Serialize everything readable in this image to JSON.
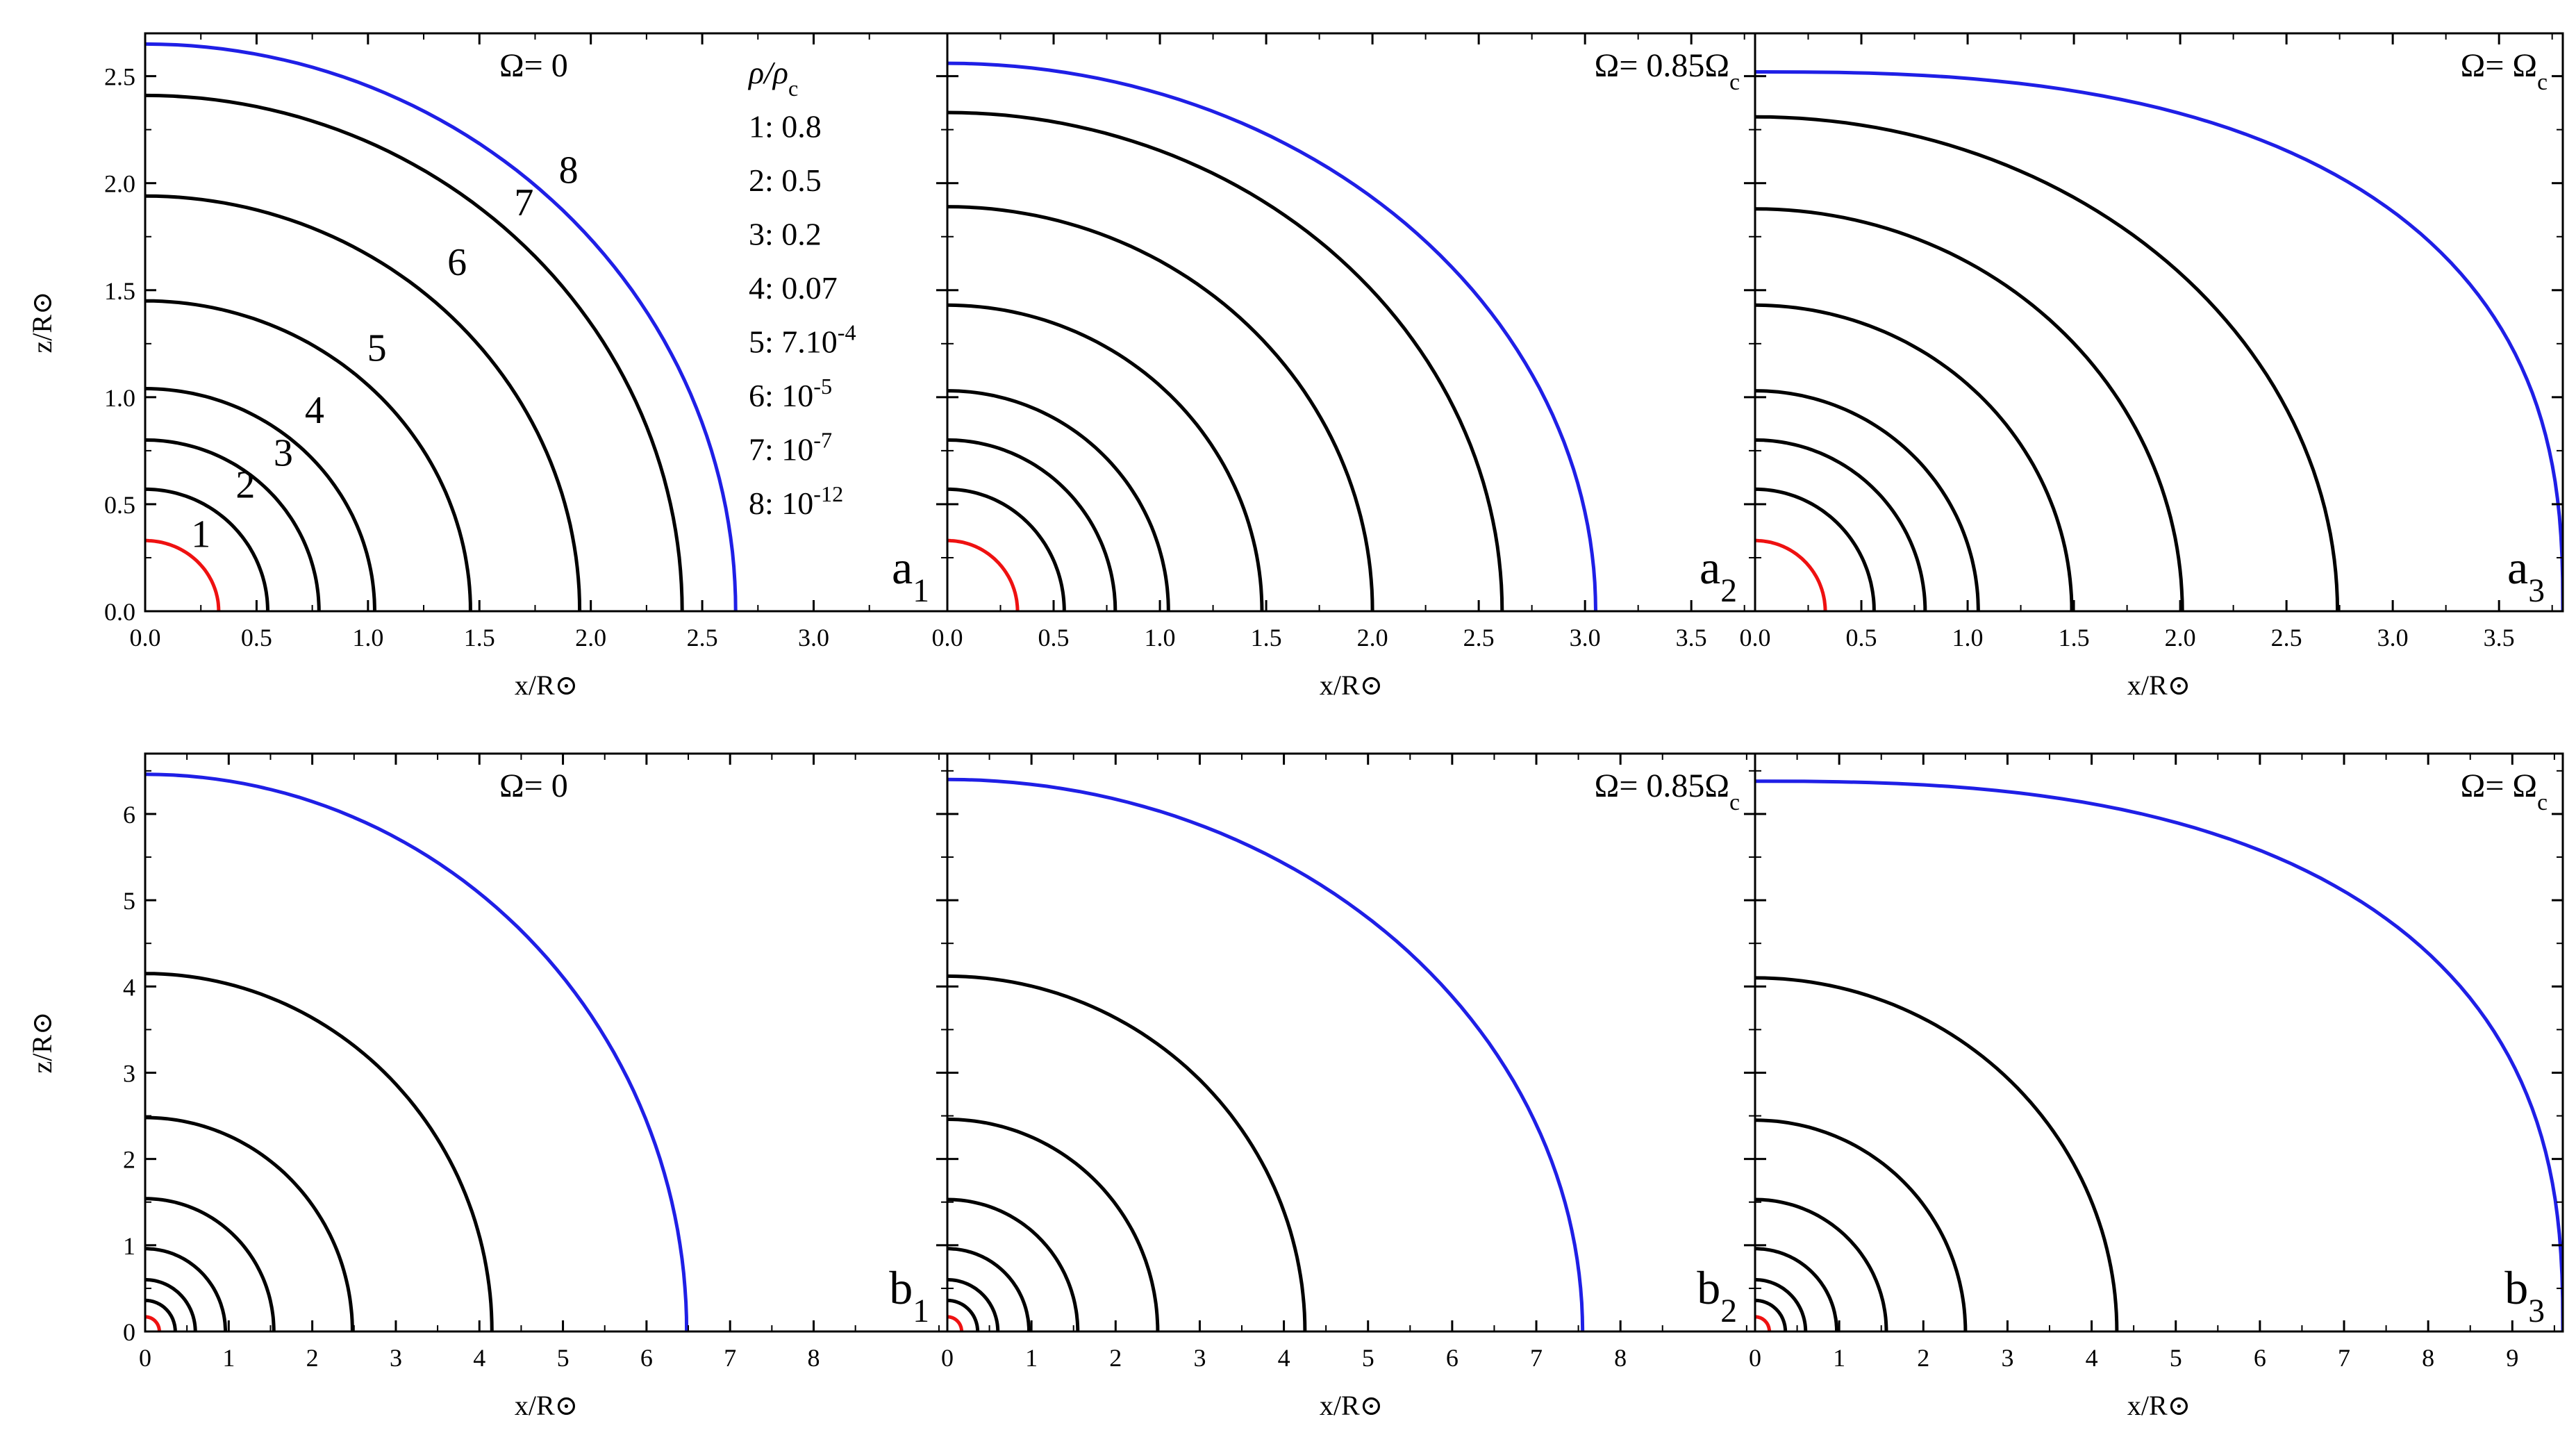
{
  "chart_data": {
    "type": "line",
    "description_of_axes": {
      "xlabel": "x/R⊙",
      "ylabel": "z/R⊙"
    },
    "legend": {
      "title": "ρ/ρ",
      "title_sub": "c",
      "entries": [
        {
          "id": "1",
          "base": "0.8",
          "sup": ""
        },
        {
          "id": "2",
          "base": "0.5",
          "sup": ""
        },
        {
          "id": "3",
          "base": "0.2",
          "sup": ""
        },
        {
          "id": "4",
          "base": "0.07",
          "sup": ""
        },
        {
          "id": "5",
          "base": "7.10",
          "sup": "-4"
        },
        {
          "id": "6",
          "base": "10",
          "sup": "-5"
        },
        {
          "id": "7",
          "base": "10",
          "sup": "-7"
        },
        {
          "id": "8",
          "base": "10",
          "sup": "-12"
        }
      ]
    },
    "contour_labels": [
      {
        "text": "1",
        "x": 0.25,
        "z": 0.3
      },
      {
        "text": "2",
        "x": 0.45,
        "z": 0.53
      },
      {
        "text": "3",
        "x": 0.62,
        "z": 0.68
      },
      {
        "text": "4",
        "x": 0.76,
        "z": 0.88
      },
      {
        "text": "5",
        "x": 1.04,
        "z": 1.17
      },
      {
        "text": "6",
        "x": 1.4,
        "z": 1.57
      },
      {
        "text": "7",
        "x": 1.7,
        "z": 1.85
      },
      {
        "text": "8",
        "x": 1.9,
        "z": 2.0
      }
    ],
    "panels": [
      {
        "id": "a1",
        "label": "a",
        "label_sub": "1",
        "omega": "Ω= 0",
        "omega_sub": "",
        "xlim": [
          0,
          3.6
        ],
        "ylim": [
          0,
          2.7
        ],
        "xticks": [
          "0.0",
          "0.5",
          "1.0",
          "1.5",
          "2.0",
          "2.5",
          "3.0"
        ],
        "yticks": [
          "0.0",
          "0.5",
          "1.0",
          "1.5",
          "2.0",
          "2.5"
        ],
        "contours": [
          {
            "name": "1",
            "color": "red",
            "eq": 0.33,
            "pole": 0.33
          },
          {
            "name": "2",
            "color": "black",
            "eq": 0.55,
            "pole": 0.57
          },
          {
            "name": "3",
            "color": "black",
            "eq": 0.78,
            "pole": 0.8
          },
          {
            "name": "4",
            "color": "black",
            "eq": 1.03,
            "pole": 1.04
          },
          {
            "name": "5",
            "color": "black",
            "eq": 1.46,
            "pole": 1.45
          },
          {
            "name": "6",
            "color": "black",
            "eq": 1.95,
            "pole": 1.94
          },
          {
            "name": "7",
            "color": "black",
            "eq": 2.41,
            "pole": 2.41
          },
          {
            "name": "8",
            "color": "blue",
            "eq": 2.65,
            "pole": 2.65
          }
        ]
      },
      {
        "id": "a2",
        "label": "a",
        "label_sub": "2",
        "omega": "Ω= 0.85Ω",
        "omega_sub": "c",
        "xlim": [
          0,
          3.8
        ],
        "ylim": [
          0,
          2.7
        ],
        "xticks": [
          "0.0",
          "0.5",
          "1.0",
          "1.5",
          "2.0",
          "2.5",
          "3.0",
          "3.5"
        ],
        "yticks": [],
        "contours": [
          {
            "name": "1",
            "color": "red",
            "eq": 0.33,
            "pole": 0.33
          },
          {
            "name": "2",
            "color": "black",
            "eq": 0.55,
            "pole": 0.57
          },
          {
            "name": "3",
            "color": "black",
            "eq": 0.79,
            "pole": 0.8
          },
          {
            "name": "4",
            "color": "black",
            "eq": 1.04,
            "pole": 1.03
          },
          {
            "name": "5",
            "color": "black",
            "eq": 1.48,
            "pole": 1.43
          },
          {
            "name": "6",
            "color": "black",
            "eq": 2.0,
            "pole": 1.89
          },
          {
            "name": "7",
            "color": "black",
            "eq": 2.61,
            "pole": 2.33
          },
          {
            "name": "8",
            "color": "blue",
            "eq": 3.05,
            "pole": 2.56
          }
        ]
      },
      {
        "id": "a3",
        "label": "a",
        "label_sub": "3",
        "omega": "Ω= Ω",
        "omega_sub": "c",
        "xlim": [
          0,
          3.8
        ],
        "ylim": [
          0,
          2.7
        ],
        "xticks": [
          "0.0",
          "0.5",
          "1.0",
          "1.5",
          "2.0",
          "2.5",
          "3.0",
          "3.5"
        ],
        "yticks": [],
        "contours": [
          {
            "name": "1",
            "color": "red",
            "eq": 0.33,
            "pole": 0.33
          },
          {
            "name": "2",
            "color": "black",
            "eq": 0.56,
            "pole": 0.57
          },
          {
            "name": "3",
            "color": "black",
            "eq": 0.8,
            "pole": 0.8
          },
          {
            "name": "4",
            "color": "black",
            "eq": 1.05,
            "pole": 1.03
          },
          {
            "name": "5",
            "color": "black",
            "eq": 1.49,
            "pole": 1.43
          },
          {
            "name": "6",
            "color": "black",
            "eq": 2.01,
            "pole": 1.88
          },
          {
            "name": "7",
            "color": "black",
            "eq": 2.74,
            "pole": 2.31
          },
          {
            "name": "8",
            "color": "blue",
            "eq": 3.8,
            "pole": 2.52
          }
        ]
      },
      {
        "id": "b1",
        "label": "b",
        "label_sub": "1",
        "omega": "Ω= 0",
        "omega_sub": "",
        "xlim": [
          0,
          9.6
        ],
        "ylim": [
          0,
          6.7
        ],
        "xticks": [
          "0",
          "1",
          "2",
          "3",
          "4",
          "5",
          "6",
          "7",
          "8"
        ],
        "yticks": [
          "0",
          "1",
          "2",
          "3",
          "4",
          "5",
          "6"
        ],
        "contours": [
          {
            "name": "1",
            "color": "red",
            "eq": 0.17,
            "pole": 0.17
          },
          {
            "name": "2",
            "color": "black",
            "eq": 0.36,
            "pole": 0.36
          },
          {
            "name": "3",
            "color": "black",
            "eq": 0.6,
            "pole": 0.6
          },
          {
            "name": "4",
            "color": "black",
            "eq": 0.96,
            "pole": 0.96
          },
          {
            "name": "5",
            "color": "black",
            "eq": 1.54,
            "pole": 1.54
          },
          {
            "name": "6",
            "color": "black",
            "eq": 2.48,
            "pole": 2.48
          },
          {
            "name": "7",
            "color": "black",
            "eq": 4.15,
            "pole": 4.15
          },
          {
            "name": "8",
            "color": "blue",
            "eq": 6.48,
            "pole": 6.46
          }
        ]
      },
      {
        "id": "b2",
        "label": "b",
        "label_sub": "2",
        "omega": "Ω= 0.85Ω",
        "omega_sub": "c",
        "xlim": [
          0,
          9.6
        ],
        "ylim": [
          0,
          6.7
        ],
        "xticks": [
          "0",
          "1",
          "2",
          "3",
          "4",
          "5",
          "6",
          "7",
          "8"
        ],
        "yticks": [],
        "contours": [
          {
            "name": "1",
            "color": "red",
            "eq": 0.17,
            "pole": 0.17
          },
          {
            "name": "2",
            "color": "black",
            "eq": 0.36,
            "pole": 0.36
          },
          {
            "name": "3",
            "color": "black",
            "eq": 0.6,
            "pole": 0.6
          },
          {
            "name": "4",
            "color": "black",
            "eq": 0.97,
            "pole": 0.96
          },
          {
            "name": "5",
            "color": "black",
            "eq": 1.55,
            "pole": 1.53
          },
          {
            "name": "6",
            "color": "black",
            "eq": 2.5,
            "pole": 2.46
          },
          {
            "name": "7",
            "color": "black",
            "eq": 4.25,
            "pole": 4.12
          },
          {
            "name": "8",
            "color": "blue",
            "eq": 7.55,
            "pole": 6.4
          }
        ]
      },
      {
        "id": "b3",
        "label": "b",
        "label_sub": "3",
        "omega": "Ω= Ω",
        "omega_sub": "c",
        "xlim": [
          0,
          9.6
        ],
        "ylim": [
          0,
          6.7
        ],
        "xticks": [
          "0",
          "1",
          "2",
          "3",
          "4",
          "5",
          "6",
          "7",
          "8",
          "9"
        ],
        "yticks": [],
        "contours": [
          {
            "name": "1",
            "color": "red",
            "eq": 0.17,
            "pole": 0.17
          },
          {
            "name": "2",
            "color": "black",
            "eq": 0.36,
            "pole": 0.36
          },
          {
            "name": "3",
            "color": "black",
            "eq": 0.6,
            "pole": 0.6
          },
          {
            "name": "4",
            "color": "black",
            "eq": 0.97,
            "pole": 0.96
          },
          {
            "name": "5",
            "color": "black",
            "eq": 1.56,
            "pole": 1.53
          },
          {
            "name": "6",
            "color": "black",
            "eq": 2.5,
            "pole": 2.45
          },
          {
            "name": "7",
            "color": "black",
            "eq": 4.3,
            "pole": 4.1
          },
          {
            "name": "8",
            "color": "blue",
            "eq": 9.6,
            "pole": 6.38
          }
        ]
      }
    ]
  }
}
